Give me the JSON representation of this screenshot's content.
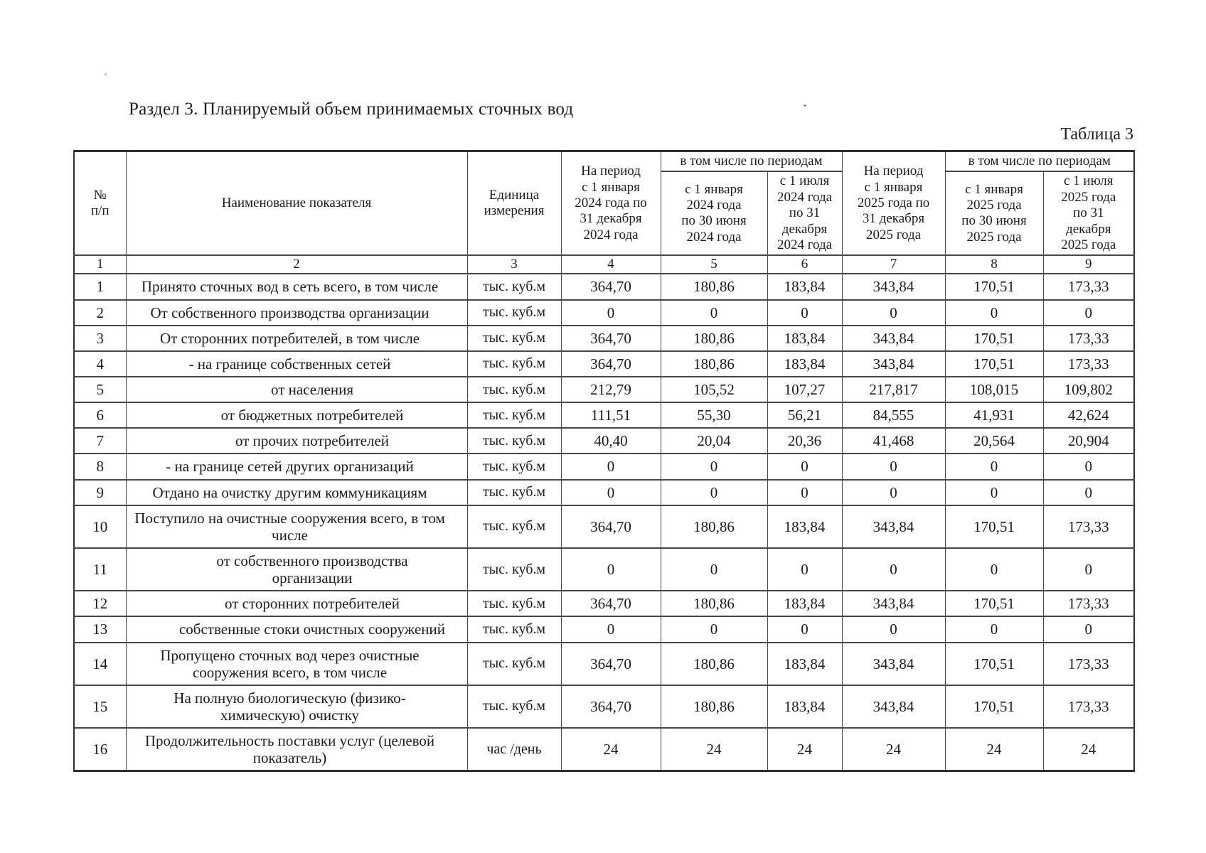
{
  "page": {
    "section_title": "Раздел 3.  Планируемый объем принимаемых сточных вод",
    "table_caption": "Таблица 3"
  },
  "table": {
    "headers": {
      "num": "№\nп/п",
      "indicator": "Наименование показателя",
      "unit": "Единица\nизмерения",
      "period_2024": "На период\nс 1 января\n2024 года по\n31 декабря\n2024 года",
      "including_2024": "в том числе по периодам",
      "h1_2024": "с 1 января\n2024 года\nпо 30 июня\n2024 года",
      "h2_2024": "с 1 июля\n2024 года\nпо 31\nдекабря\n2024 года",
      "period_2025": "На период\nс 1 января\n2025 года по\n31 декабря\n2025 года",
      "including_2025": "в том числе по периодам",
      "h1_2025": "с 1 января\n2025 года\nпо 30 июня\n2025 года",
      "h2_2025": "с 1 июля\n2025 года\nпо 31\nдекабря\n2025 года"
    },
    "column_numbers": [
      "1",
      "2",
      "3",
      "4",
      "5",
      "6",
      "7",
      "8",
      "9"
    ],
    "rows": [
      {
        "num": "1",
        "name": "Принято сточных вод в сеть всего, в том числе",
        "indent": false,
        "unit": "тыс. куб.м",
        "values": [
          "364,70",
          "180,86",
          "183,84",
          "343,84",
          "170,51",
          "173,33"
        ]
      },
      {
        "num": "2",
        "name": "От собственного производства организации",
        "indent": false,
        "unit": "тыс. куб.м",
        "values": [
          "0",
          "0",
          "0",
          "0",
          "0",
          "0"
        ]
      },
      {
        "num": "3",
        "name": "От сторонних потребителей, в том числе",
        "indent": false,
        "unit": "тыс. куб.м",
        "values": [
          "364,70",
          "180,86",
          "183,84",
          "343,84",
          "170,51",
          "173,33"
        ]
      },
      {
        "num": "4",
        "name": "- на границе собственных сетей",
        "indent": false,
        "unit": "тыс. куб.м",
        "values": [
          "364,70",
          "180,86",
          "183,84",
          "343,84",
          "170,51",
          "173,33"
        ]
      },
      {
        "num": "5",
        "name": "от населения",
        "indent": true,
        "unit": "тыс. куб.м",
        "values": [
          "212,79",
          "105,52",
          "107,27",
          "217,817",
          "108,015",
          "109,802"
        ]
      },
      {
        "num": "6",
        "name": "от бюджетных потребителей",
        "indent": true,
        "unit": "тыс. куб.м",
        "values": [
          "111,51",
          "55,30",
          "56,21",
          "84,555",
          "41,931",
          "42,624"
        ]
      },
      {
        "num": "7",
        "name": "от прочих потребителей",
        "indent": true,
        "unit": "тыс. куб.м",
        "values": [
          "40,40",
          "20,04",
          "20,36",
          "41,468",
          "20,564",
          "20,904"
        ]
      },
      {
        "num": "8",
        "name": "- на границе сетей других организаций",
        "indent": false,
        "unit": "тыс. куб.м",
        "values": [
          "0",
          "0",
          "0",
          "0",
          "0",
          "0"
        ]
      },
      {
        "num": "9",
        "name": "Отдано на очистку другим коммуникациям",
        "indent": false,
        "unit": "тыс. куб.м",
        "values": [
          "0",
          "0",
          "0",
          "0",
          "0",
          "0"
        ]
      },
      {
        "num": "10",
        "name": "Поступило на очистные сооружения всего, в том числе",
        "indent": false,
        "unit": "тыс. куб.м",
        "values": [
          "364,70",
          "180,86",
          "183,84",
          "343,84",
          "170,51",
          "173,33"
        ]
      },
      {
        "num": "11",
        "name": "от собственного производства организации",
        "indent": true,
        "unit": "тыс. куб.м",
        "values": [
          "0",
          "0",
          "0",
          "0",
          "0",
          "0"
        ]
      },
      {
        "num": "12",
        "name": "от сторонних потребителей",
        "indent": true,
        "unit": "тыс. куб.м",
        "values": [
          "364,70",
          "180,86",
          "183,84",
          "343,84",
          "170,51",
          "173,33"
        ]
      },
      {
        "num": "13",
        "name": "собственные стоки очистных сооружений",
        "indent": true,
        "unit": "тыс. куб.м",
        "values": [
          "0",
          "0",
          "0",
          "0",
          "0",
          "0"
        ]
      },
      {
        "num": "14",
        "name": "Пропущено сточных вод через очистные сооружения всего, в том числе",
        "indent": false,
        "unit": "тыс. куб.м",
        "values": [
          "364,70",
          "180,86",
          "183,84",
          "343,84",
          "170,51",
          "173,33"
        ]
      },
      {
        "num": "15",
        "name": "На полную биологическую (физико-химическую) очистку",
        "indent": false,
        "unit": "тыс. куб.м",
        "values": [
          "364,70",
          "180,86",
          "183,84",
          "343,84",
          "170,51",
          "173,33"
        ]
      },
      {
        "num": "16",
        "name": "Продолжительность поставки услуг (целевой показатель)",
        "indent": false,
        "unit": "час /день",
        "values": [
          "24",
          "24",
          "24",
          "24",
          "24",
          "24"
        ]
      }
    ]
  }
}
